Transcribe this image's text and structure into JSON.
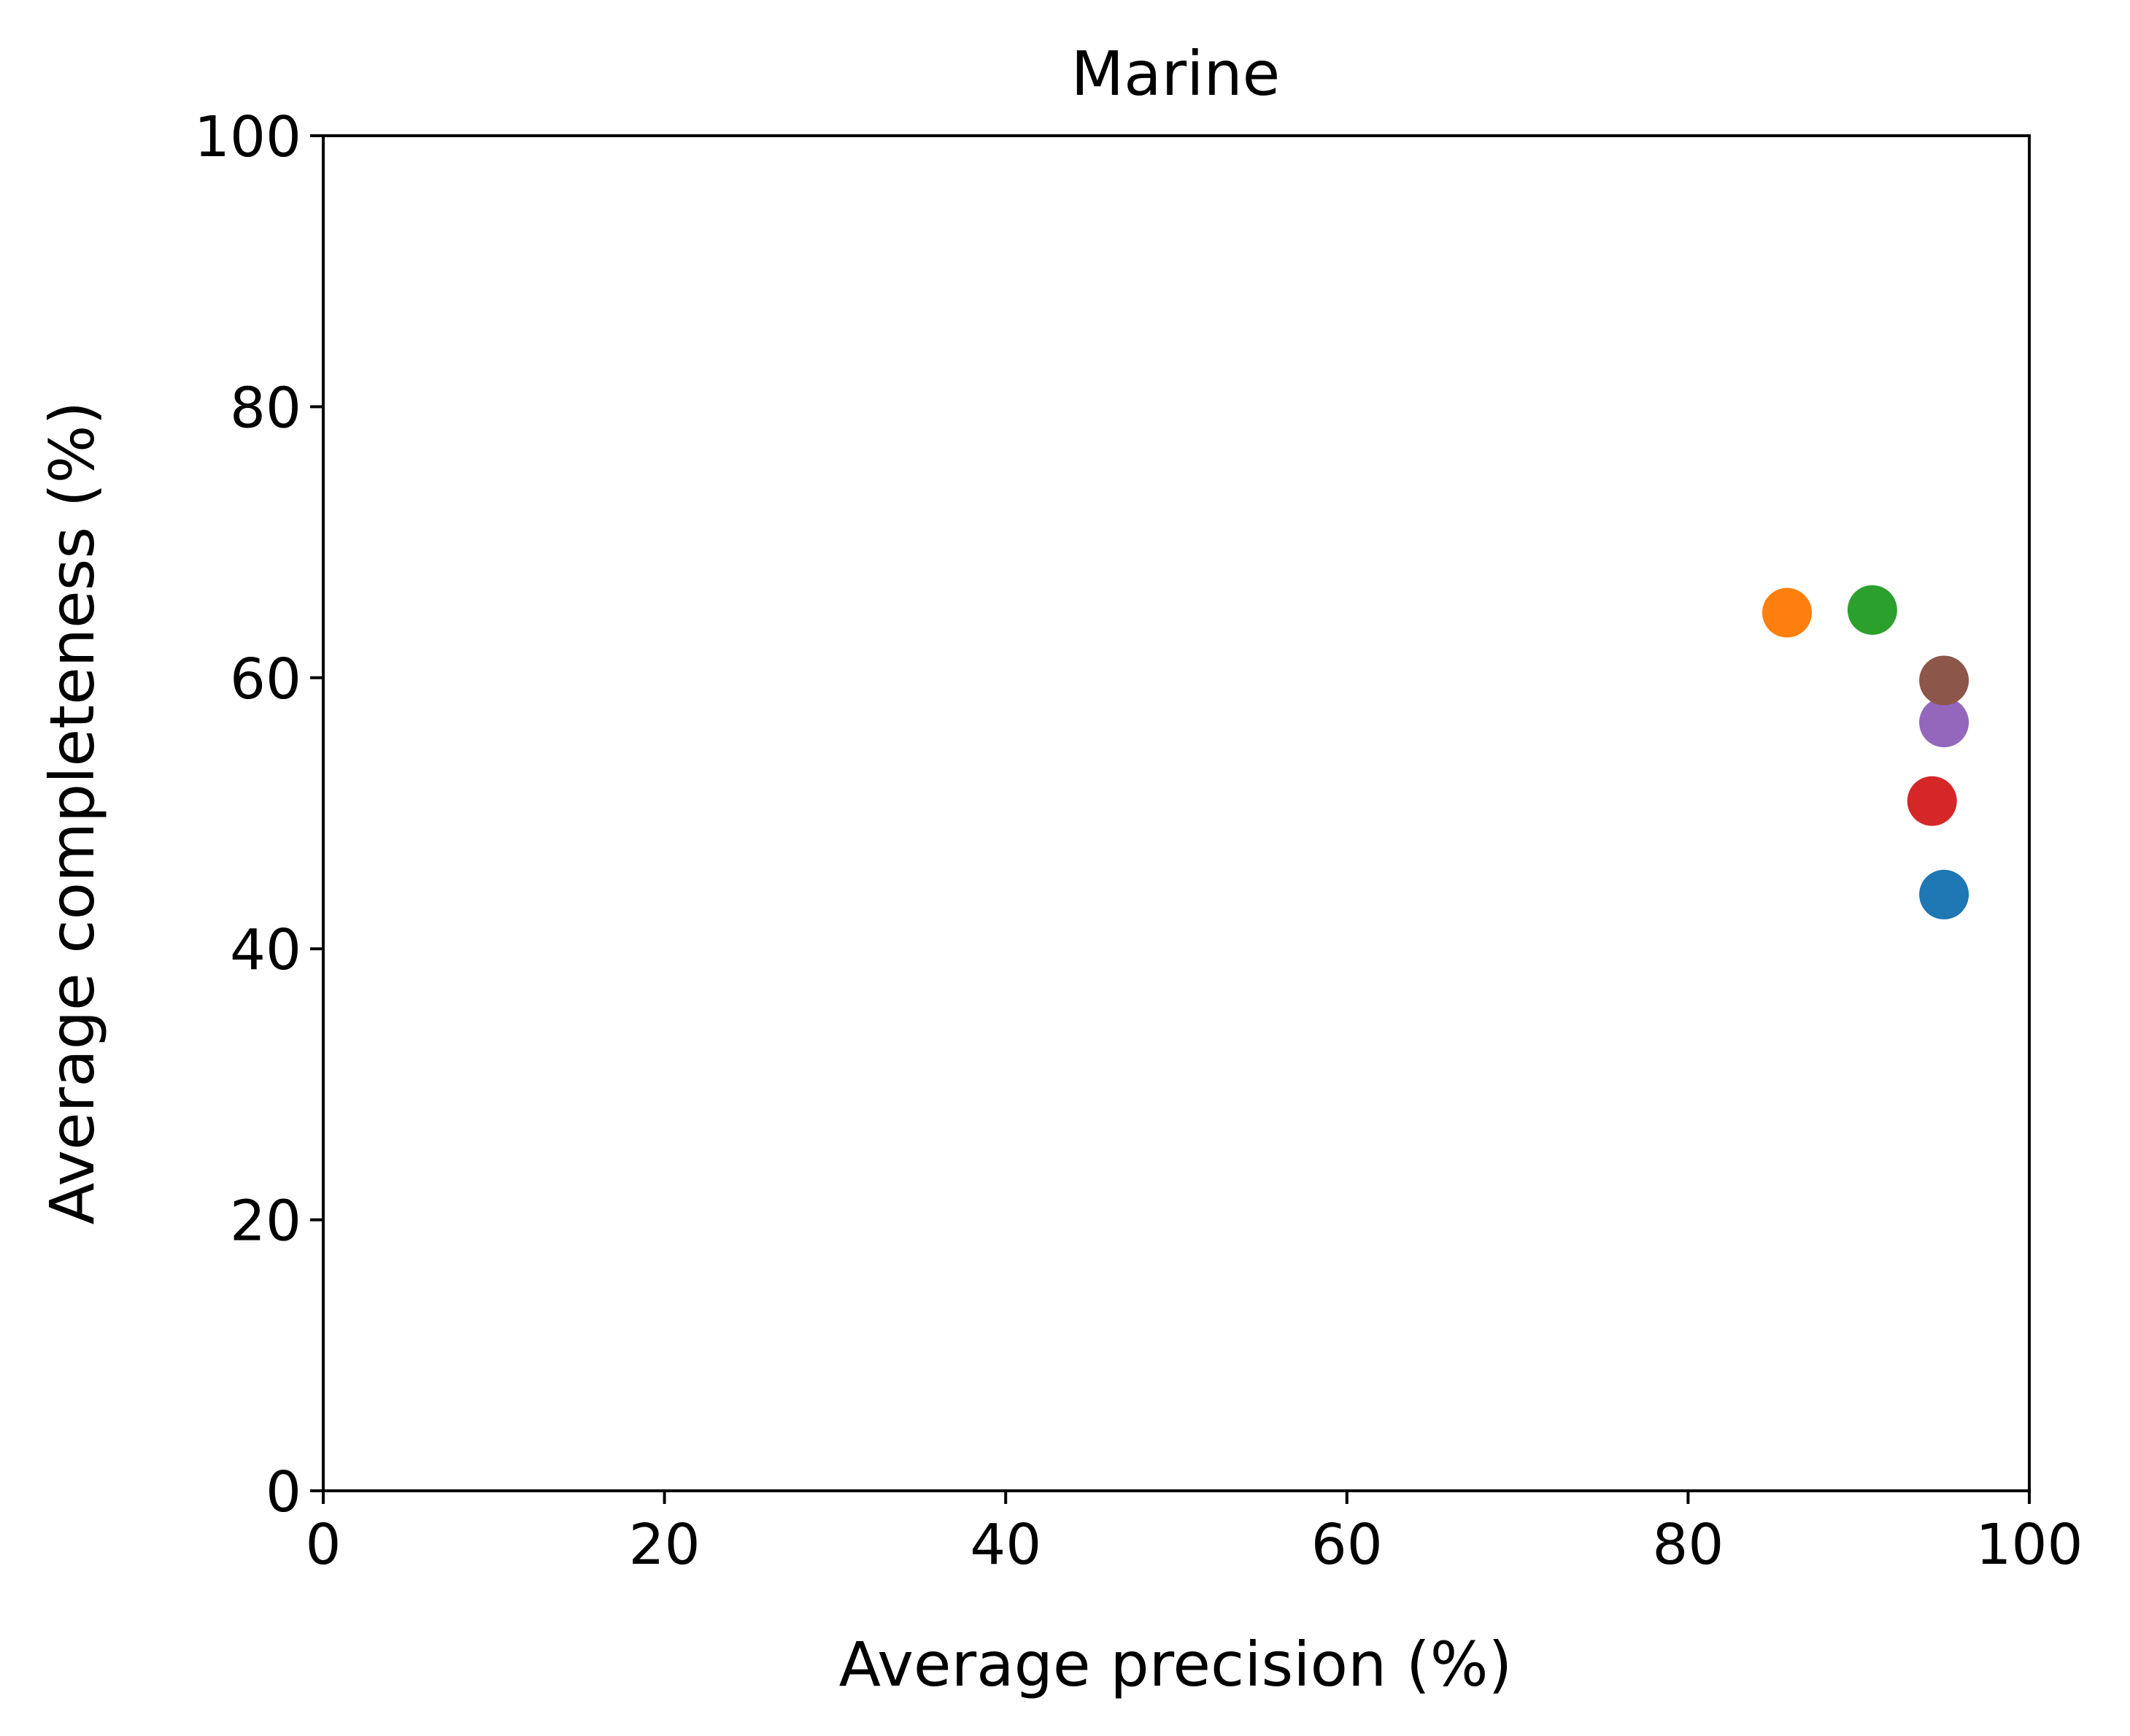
{
  "chart_data": {
    "type": "scatter",
    "title": "Marine",
    "xlabel": "Average precision (%)",
    "ylabel": "Average completeness (%)",
    "xlim": [
      0,
      100
    ],
    "ylim": [
      0,
      100
    ],
    "xticks": [
      "0",
      "20",
      "40",
      "60",
      "80",
      "100"
    ],
    "yticks": [
      "0",
      "20",
      "40",
      "60",
      "80",
      "100"
    ],
    "grid": false,
    "points": [
      {
        "x": 95.0,
        "y": 44.0,
        "color": "#1f77b4"
      },
      {
        "x": 85.8,
        "y": 64.8,
        "color": "#ff7f0e"
      },
      {
        "x": 90.8,
        "y": 65.0,
        "color": "#2ca02c"
      },
      {
        "x": 94.3,
        "y": 50.9,
        "color": "#d62728"
      },
      {
        "x": 95.0,
        "y": 56.7,
        "color": "#9467bd"
      },
      {
        "x": 95.0,
        "y": 59.8,
        "color": "#8c564b"
      }
    ]
  }
}
